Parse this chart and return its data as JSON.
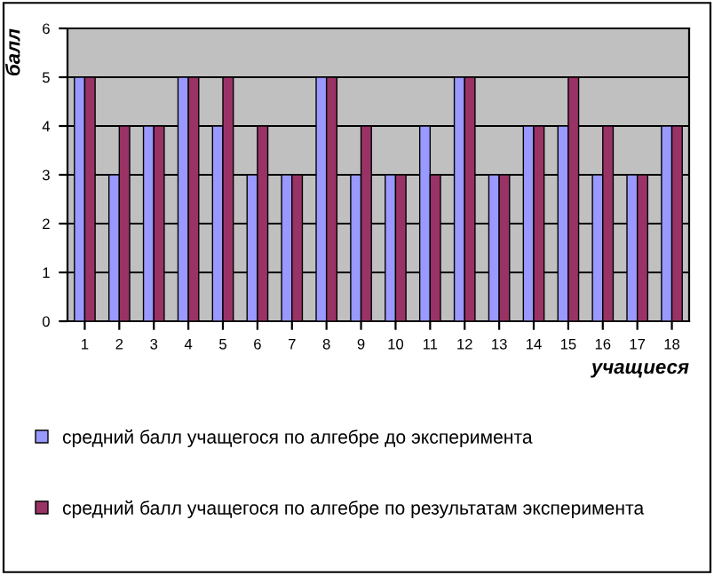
{
  "chart_data": {
    "type": "bar",
    "xlabel": "учащиеся",
    "ylabel": "балл",
    "categories": [
      "1",
      "2",
      "3",
      "4",
      "5",
      "6",
      "7",
      "8",
      "9",
      "10",
      "11",
      "12",
      "13",
      "14",
      "15",
      "16",
      "17",
      "18"
    ],
    "series": [
      {
        "name": "средний балл учащегося по алгебре до эксперимента",
        "color": "#9999ff",
        "values": [
          5,
          3,
          4,
          5,
          4,
          3,
          3,
          5,
          3,
          3,
          4,
          5,
          3,
          4,
          4,
          3,
          3,
          4
        ]
      },
      {
        "name": "средний балл учащегося по алгебре по результатам эксперимента",
        "color": "#993366",
        "values": [
          5,
          4,
          4,
          5,
          5,
          4,
          3,
          5,
          4,
          3,
          3,
          5,
          3,
          4,
          5,
          4,
          3,
          4
        ]
      }
    ],
    "ylim": [
      0,
      6
    ],
    "yticks": [
      0,
      1,
      2,
      3,
      4,
      5,
      6
    ],
    "grid": "y",
    "legend": "bottom"
  }
}
